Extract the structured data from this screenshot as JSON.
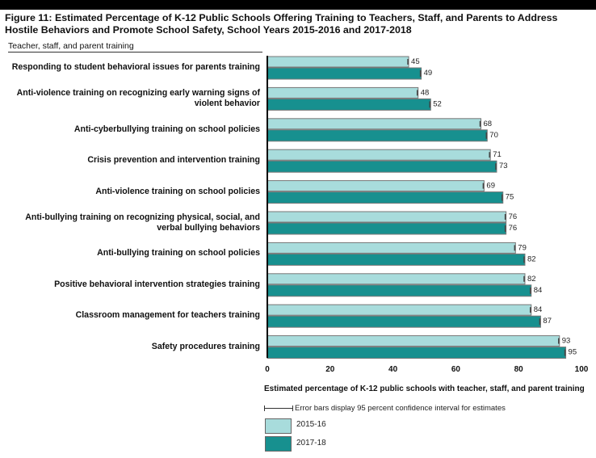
{
  "title": "Figure 11: Estimated Percentage of K-12 Public Schools Offering Training to Teachers, Staff, and Parents to Address Hostile Behaviors and Promote School Safety, School Years 2015-2016 and 2017-2018",
  "section_label": "Teacher, staff, and parent training",
  "legend": {
    "error_note": "Error bars display 95 percent confidence interval for estimates"
  },
  "chart_data": {
    "type": "bar",
    "orientation": "horizontal",
    "title": "Figure 11: Estimated Percentage of K-12 Public Schools Offering Training to Teachers, Staff, and Parents to Address Hostile Behaviors and Promote School Safety, School Years 2015-2016 and 2017-2018",
    "xlabel": "Estimated percentage of K-12 public schools with teacher, staff, and parent training",
    "ylabel": "Teacher, staff, and parent training",
    "xlim": [
      0,
      100
    ],
    "xticks": [
      "0",
      "20",
      "40",
      "60",
      "80",
      "100"
    ],
    "categories": [
      "Responding to student behavioral issues for parents training",
      "Anti-violence training on recognizing early warning signs of violent behavior",
      "Anti-cyberbullying training on school policies",
      "Crisis prevention and intervention training",
      "Anti-violence training on school policies",
      "Anti-bullying training on recognizing physical, social, and verbal bullying behaviors",
      "Anti-bullying training on school policies",
      "Positive behavioral intervention strategies training",
      "Classroom management for teachers training",
      "Safety procedures training"
    ],
    "series": [
      {
        "name": "2015-16",
        "color": "#a8dcdc",
        "values": [
          45,
          48,
          68,
          71,
          69,
          76,
          79,
          82,
          84,
          93
        ]
      },
      {
        "name": "2017-18",
        "color": "#17908f",
        "values": [
          49,
          52,
          70,
          73,
          75,
          76,
          82,
          84,
          87,
          95
        ]
      }
    ],
    "legend_position": "bottom-left"
  }
}
